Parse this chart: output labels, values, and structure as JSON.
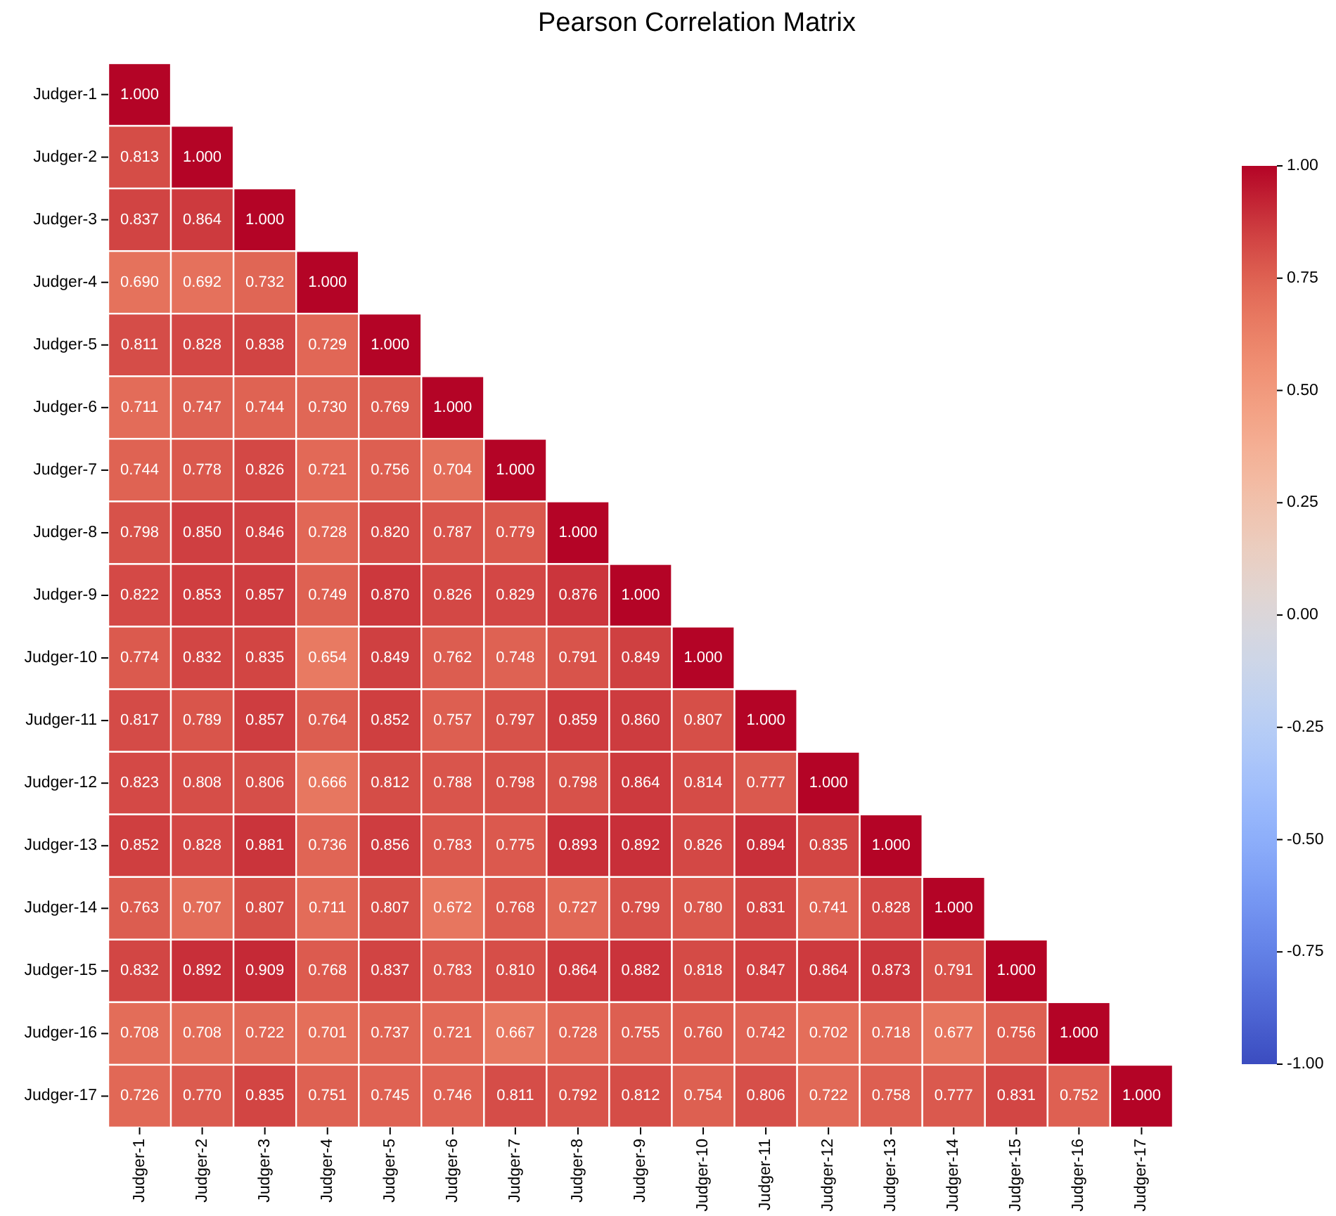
{
  "chart_data": {
    "type": "heatmap",
    "title": "Pearson Correlation Matrix",
    "categories": [
      "Judger-1",
      "Judger-2",
      "Judger-3",
      "Judger-4",
      "Judger-5",
      "Judger-6",
      "Judger-7",
      "Judger-8",
      "Judger-9",
      "Judger-10",
      "Judger-11",
      "Judger-12",
      "Judger-13",
      "Judger-14",
      "Judger-15",
      "Judger-16",
      "Judger-17"
    ],
    "y_categories": [
      "Judger-1",
      "Judger-2",
      "Judger-3",
      "Judger-4",
      "Judger-5",
      "Judger-6",
      "Judger-7",
      "Judger-8",
      "Judger-9",
      "Judger-10",
      "Judger-11",
      "Judger-12",
      "Judger-13",
      "Judger-14",
      "Judger-15",
      "Judger-16",
      "Judger-17"
    ],
    "cells": [
      [
        1.0,
        null,
        null,
        null,
        null,
        null,
        null,
        null,
        null,
        null,
        null,
        null,
        null,
        null,
        null,
        null,
        null
      ],
      [
        0.813,
        1.0,
        null,
        null,
        null,
        null,
        null,
        null,
        null,
        null,
        null,
        null,
        null,
        null,
        null,
        null,
        null
      ],
      [
        0.837,
        0.864,
        1.0,
        null,
        null,
        null,
        null,
        null,
        null,
        null,
        null,
        null,
        null,
        null,
        null,
        null,
        null
      ],
      [
        0.69,
        0.692,
        0.732,
        1.0,
        null,
        null,
        null,
        null,
        null,
        null,
        null,
        null,
        null,
        null,
        null,
        null,
        null
      ],
      [
        0.811,
        0.828,
        0.838,
        0.729,
        1.0,
        null,
        null,
        null,
        null,
        null,
        null,
        null,
        null,
        null,
        null,
        null,
        null
      ],
      [
        0.711,
        0.747,
        0.744,
        0.73,
        0.769,
        1.0,
        null,
        null,
        null,
        null,
        null,
        null,
        null,
        null,
        null,
        null,
        null
      ],
      [
        0.744,
        0.778,
        0.826,
        0.721,
        0.756,
        0.704,
        1.0,
        null,
        null,
        null,
        null,
        null,
        null,
        null,
        null,
        null,
        null
      ],
      [
        0.798,
        0.85,
        0.846,
        0.728,
        0.82,
        0.787,
        0.779,
        1.0,
        null,
        null,
        null,
        null,
        null,
        null,
        null,
        null,
        null
      ],
      [
        0.822,
        0.853,
        0.857,
        0.749,
        0.87,
        0.826,
        0.829,
        0.876,
        1.0,
        null,
        null,
        null,
        null,
        null,
        null,
        null,
        null
      ],
      [
        0.774,
        0.832,
        0.835,
        0.654,
        0.849,
        0.762,
        0.748,
        0.791,
        0.849,
        1.0,
        null,
        null,
        null,
        null,
        null,
        null,
        null
      ],
      [
        0.817,
        0.789,
        0.857,
        0.764,
        0.852,
        0.757,
        0.797,
        0.859,
        0.86,
        0.807,
        1.0,
        null,
        null,
        null,
        null,
        null,
        null
      ],
      [
        0.823,
        0.808,
        0.806,
        0.666,
        0.812,
        0.788,
        0.798,
        0.798,
        0.864,
        0.814,
        0.777,
        1.0,
        null,
        null,
        null,
        null,
        null
      ],
      [
        0.852,
        0.828,
        0.881,
        0.736,
        0.856,
        0.783,
        0.775,
        0.893,
        0.892,
        0.826,
        0.894,
        0.835,
        1.0,
        null,
        null,
        null,
        null
      ],
      [
        0.763,
        0.707,
        0.807,
        0.711,
        0.807,
        0.672,
        0.768,
        0.727,
        0.799,
        0.78,
        0.831,
        0.741,
        0.828,
        1.0,
        null,
        null,
        null
      ],
      [
        0.832,
        0.892,
        0.909,
        0.768,
        0.837,
        0.783,
        0.81,
        0.864,
        0.882,
        0.818,
        0.847,
        0.864,
        0.873,
        0.791,
        1.0,
        null,
        null
      ],
      [
        0.708,
        0.708,
        0.722,
        0.701,
        0.737,
        0.721,
        0.667,
        0.728,
        0.755,
        0.76,
        0.742,
        0.702,
        0.718,
        0.677,
        0.756,
        1.0,
        null
      ],
      [
        0.726,
        0.77,
        0.835,
        0.751,
        0.745,
        0.746,
        0.811,
        0.792,
        0.812,
        0.754,
        0.806,
        0.722,
        0.758,
        0.777,
        0.831,
        0.752,
        1.0
      ]
    ],
    "cell_labels": [
      [
        "1.000",
        null,
        null,
        null,
        null,
        null,
        null,
        null,
        null,
        null,
        null,
        null,
        null,
        null,
        null,
        null,
        null
      ],
      [
        "0.813",
        "1.000",
        null,
        null,
        null,
        null,
        null,
        null,
        null,
        null,
        null,
        null,
        null,
        null,
        null,
        null,
        null
      ],
      [
        "0.837",
        "0.864",
        "1.000",
        null,
        null,
        null,
        null,
        null,
        null,
        null,
        null,
        null,
        null,
        null,
        null,
        null,
        null
      ],
      [
        "0.690",
        "0.692",
        "0.732",
        "1.000",
        null,
        null,
        null,
        null,
        null,
        null,
        null,
        null,
        null,
        null,
        null,
        null,
        null
      ],
      [
        "0.811",
        "0.828",
        "0.838",
        "0.729",
        "1.000",
        null,
        null,
        null,
        null,
        null,
        null,
        null,
        null,
        null,
        null,
        null,
        null
      ],
      [
        "0.711",
        "0.747",
        "0.744",
        "0.730",
        "0.769",
        "1.000",
        null,
        null,
        null,
        null,
        null,
        null,
        null,
        null,
        null,
        null,
        null
      ],
      [
        "0.744",
        "0.778",
        "0.826",
        "0.721",
        "0.756",
        "0.704",
        "1.000",
        null,
        null,
        null,
        null,
        null,
        null,
        null,
        null,
        null,
        null
      ],
      [
        "0.798",
        "0.850",
        "0.846",
        "0.728",
        "0.820",
        "0.787",
        "0.779",
        "1.000",
        null,
        null,
        null,
        null,
        null,
        null,
        null,
        null,
        null
      ],
      [
        "0.822",
        "0.853",
        "0.857",
        "0.749",
        "0.870",
        "0.826",
        "0.829",
        "0.876",
        "1.000",
        null,
        null,
        null,
        null,
        null,
        null,
        null,
        null
      ],
      [
        "0.774",
        "0.832",
        "0.835",
        "0.654",
        "0.849",
        "0.762",
        "0.748",
        "0.791",
        "0.849",
        "1.000",
        null,
        null,
        null,
        null,
        null,
        null,
        null
      ],
      [
        "0.817",
        "0.789",
        "0.857",
        "0.764",
        "0.852",
        "0.757",
        "0.797",
        "0.859",
        "0.860",
        "0.807",
        "1.000",
        null,
        null,
        null,
        null,
        null,
        null
      ],
      [
        "0.823",
        "0.808",
        "0.806",
        "0.666",
        "0.812",
        "0.788",
        "0.798",
        "0.798",
        "0.864",
        "0.814",
        "0.777",
        "1.000",
        null,
        null,
        null,
        null,
        null
      ],
      [
        "0.852",
        "0.828",
        "0.881",
        "0.736",
        "0.856",
        "0.783",
        "0.775",
        "0.893",
        "0.892",
        "0.826",
        "0.894",
        "0.835",
        "1.000",
        null,
        null,
        null,
        null
      ],
      [
        "0.763",
        "0.707",
        "0.807",
        "0.711",
        "0.807",
        "0.672",
        "0.768",
        "0.727",
        "0.799",
        "0.780",
        "0.831",
        "0.741",
        "0.828",
        "1.000",
        null,
        null,
        null
      ],
      [
        "0.832",
        "0.892",
        "0.909",
        "0.768",
        "0.837",
        "0.783",
        "0.810",
        "0.864",
        "0.882",
        "0.818",
        "0.847",
        "0.864",
        "0.873",
        "0.791",
        "1.000",
        null,
        null
      ],
      [
        "0.708",
        "0.708",
        "0.722",
        "0.701",
        "0.737",
        "0.721",
        "0.667",
        "0.728",
        "0.755",
        "0.760",
        "0.742",
        "0.702",
        "0.718",
        "0.677",
        "0.756",
        "1.000",
        null
      ],
      [
        "0.726",
        "0.770",
        "0.835",
        "0.751",
        "0.745",
        "0.746",
        "0.811",
        "0.792",
        "0.812",
        "0.754",
        "0.806",
        "0.722",
        "0.758",
        "0.777",
        "0.831",
        "0.752",
        "1.000"
      ]
    ],
    "clim": [
      -1,
      1
    ],
    "cticks": [
      {
        "value": -1,
        "label": "-1.00"
      },
      {
        "value": -0.75,
        "label": "-0.75"
      },
      {
        "value": -0.5,
        "label": "-0.50"
      },
      {
        "value": -0.25,
        "label": "-0.25"
      },
      {
        "value": 0,
        "label": "0.00"
      },
      {
        "value": 0.25,
        "label": "0.25"
      },
      {
        "value": 0.5,
        "label": "0.50"
      },
      {
        "value": 0.75,
        "label": "0.75"
      },
      {
        "value": 1,
        "label": "1.00"
      }
    ]
  }
}
